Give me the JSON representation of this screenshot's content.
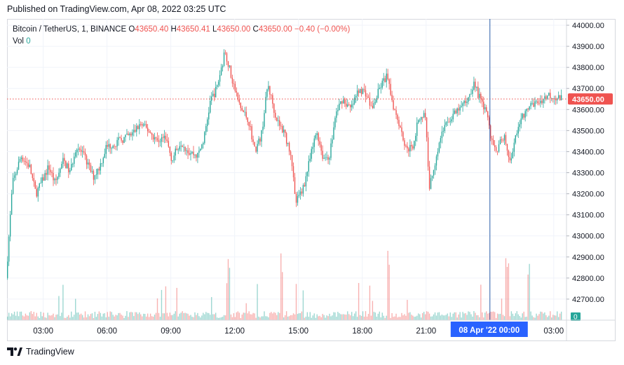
{
  "header": {
    "published": "Published on TradingView.com, Apr 08, 2022 03:25 UTC"
  },
  "legend": {
    "symbol": "Bitcoin / TetherUS, 1, BINANCE",
    "o_label": "O",
    "o": "43650.40",
    "h_label": "H",
    "h": "43650.41",
    "l_label": "L",
    "l": "43650.00",
    "c_label": "C",
    "c": "43650.00",
    "change": "−0.40 (−0.00%)",
    "vol_label": "Vol",
    "vol": "0"
  },
  "footer": {
    "brand": "TradingView"
  },
  "colors": {
    "up": "#26a69a",
    "down": "#ef5350",
    "crosshair": "#2a5caa",
    "date_badge": "#2962ff",
    "price_line": "#ef5350"
  },
  "chart_data": {
    "type": "candlestick",
    "interval": "1 minute",
    "ylim": [
      42600,
      44030
    ],
    "y_ticks": [
      "44000.00",
      "43900.00",
      "43800.00",
      "43700.00",
      "43600.00",
      "43500.00",
      "43400.00",
      "43300.00",
      "43200.00",
      "43100.00",
      "43000.00",
      "42900.00",
      "42800.00",
      "42700.00"
    ],
    "y_tick_values": [
      44000,
      43900,
      43800,
      43700,
      43600,
      43500,
      43400,
      43300,
      43200,
      43100,
      43000,
      42900,
      42800,
      42700
    ],
    "x_ticks": [
      "03:00",
      "06:00",
      "09:00",
      "12:00",
      "15:00",
      "18:00",
      "21:00",
      "03:00"
    ],
    "x_tick_hours": [
      3,
      6,
      9,
      12,
      15,
      18,
      21,
      27
    ],
    "x_range_hours": [
      1.3,
      27.6
    ],
    "current_price": "43650.00",
    "current_volume": "0",
    "crosshair_label": "08 Apr '22   00:00",
    "crosshair_hour": 24,
    "price_path": [
      [
        1.3,
        42800
      ],
      [
        1.6,
        43250
      ],
      [
        2.0,
        43380
      ],
      [
        2.4,
        43330
      ],
      [
        2.7,
        43200
      ],
      [
        3.0,
        43260
      ],
      [
        3.3,
        43330
      ],
      [
        3.6,
        43250
      ],
      [
        4.0,
        43360
      ],
      [
        4.3,
        43300
      ],
      [
        4.6,
        43430
      ],
      [
        5.0,
        43370
      ],
      [
        5.4,
        43280
      ],
      [
        5.7,
        43330
      ],
      [
        6.0,
        43420
      ],
      [
        6.4,
        43440
      ],
      [
        6.8,
        43460
      ],
      [
        7.2,
        43480
      ],
      [
        7.6,
        43530
      ],
      [
        8.0,
        43500
      ],
      [
        8.4,
        43450
      ],
      [
        8.8,
        43470
      ],
      [
        9.1,
        43360
      ],
      [
        9.5,
        43450
      ],
      [
        9.9,
        43400
      ],
      [
        10.3,
        43380
      ],
      [
        10.6,
        43460
      ],
      [
        10.9,
        43640
      ],
      [
        11.2,
        43700
      ],
      [
        11.6,
        43880
      ],
      [
        11.9,
        43750
      ],
      [
        12.3,
        43610
      ],
      [
        12.7,
        43550
      ],
      [
        13.0,
        43400
      ],
      [
        13.3,
        43480
      ],
      [
        13.6,
        43720
      ],
      [
        14.0,
        43560
      ],
      [
        14.4,
        43480
      ],
      [
        14.7,
        43390
      ],
      [
        14.9,
        43150
      ],
      [
        15.3,
        43240
      ],
      [
        15.6,
        43370
      ],
      [
        15.9,
        43500
      ],
      [
        16.2,
        43370
      ],
      [
        16.5,
        43380
      ],
      [
        16.8,
        43580
      ],
      [
        17.1,
        43650
      ],
      [
        17.5,
        43600
      ],
      [
        17.9,
        43700
      ],
      [
        18.2,
        43680
      ],
      [
        18.5,
        43600
      ],
      [
        18.9,
        43710
      ],
      [
        19.2,
        43760
      ],
      [
        19.5,
        43620
      ],
      [
        19.8,
        43530
      ],
      [
        20.1,
        43410
      ],
      [
        20.4,
        43420
      ],
      [
        20.7,
        43560
      ],
      [
        21.0,
        43580
      ],
      [
        21.2,
        43230
      ],
      [
        21.5,
        43370
      ],
      [
        21.8,
        43500
      ],
      [
        22.2,
        43560
      ],
      [
        22.6,
        43600
      ],
      [
        23.0,
        43650
      ],
      [
        23.3,
        43730
      ],
      [
        23.6,
        43640
      ],
      [
        23.9,
        43590
      ],
      [
        24.1,
        43450
      ],
      [
        24.4,
        43410
      ],
      [
        24.7,
        43480
      ],
      [
        25.0,
        43340
      ],
      [
        25.3,
        43500
      ],
      [
        25.6,
        43570
      ],
      [
        26.0,
        43620
      ],
      [
        26.4,
        43640
      ],
      [
        26.8,
        43670
      ],
      [
        27.1,
        43660
      ],
      [
        27.4,
        43650
      ]
    ],
    "volume_spike_hours": [
      11.7,
      14.2,
      19.2,
      24.8,
      25.8
    ]
  }
}
